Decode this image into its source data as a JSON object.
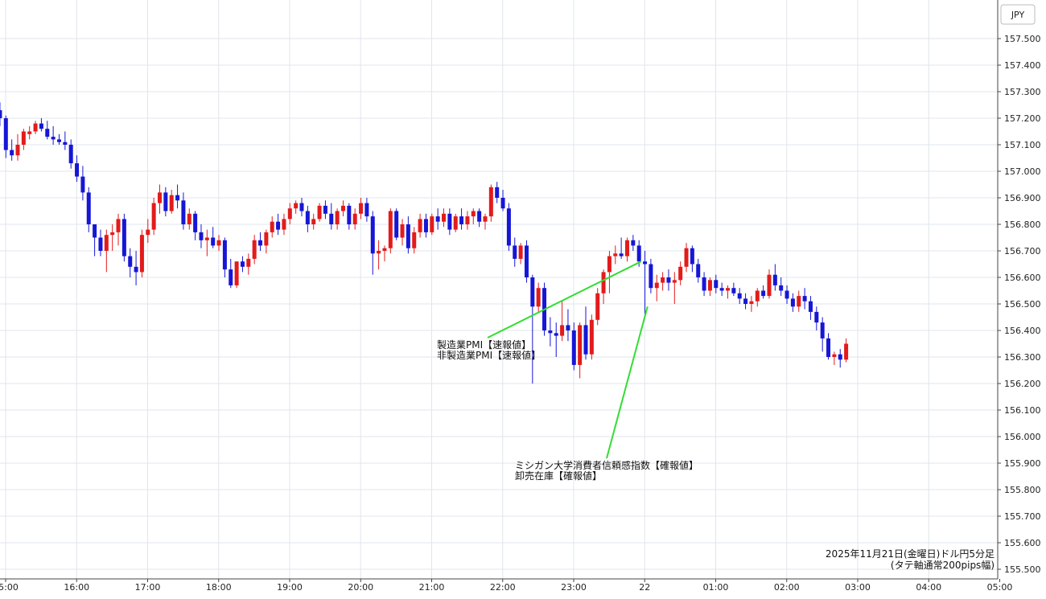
{
  "chart_data": {
    "type": "candlestick",
    "currency": "JPY",
    "caption": [
      "2025年11月21日(金曜日)ドル円5分足",
      "(タテ軸通常200pips幅)"
    ],
    "ylim": [
      155.5,
      157.6
    ],
    "y_ticks": [
      "155.500",
      "155.600",
      "155.700",
      "155.800",
      "155.900",
      "156.000",
      "156.100",
      "156.200",
      "156.300",
      "156.400",
      "156.500",
      "156.600",
      "156.700",
      "156.800",
      "156.900",
      "157.000",
      "157.100",
      "157.200",
      "157.300",
      "157.400",
      "157.500"
    ],
    "x_ticks": [
      "15:00",
      "16:00",
      "17:00",
      "18:00",
      "19:00",
      "20:00",
      "21:00",
      "22:00",
      "23:00",
      "22",
      "01:00",
      "02:00",
      "03:00",
      "04:00",
      "05:00"
    ],
    "x_tick_hours": [
      15,
      16,
      17,
      18,
      19,
      20,
      21,
      22,
      23,
      24,
      25,
      26,
      27,
      28,
      29
    ],
    "annotations": [
      {
        "lines": [
          "製造業PMI【速報値】",
          "非製造業PMI【速報値】"
        ],
        "time": 23.95,
        "price": 156.66
      },
      {
        "lines": [
          "ミシガン大学消費者信頼感指数【確報値】",
          "卸売在庫【確報値】"
        ],
        "time": 24.04,
        "price": 156.49
      }
    ],
    "colors": {
      "up": "#e31b1b",
      "down": "#1616d6",
      "annotation_line": "#33dd33",
      "grid": "#dfe6ec"
    },
    "start_hour": 14.92,
    "interval_minutes": 5,
    "candles": [
      [
        157.23,
        157.26,
        157.17,
        157.2
      ],
      [
        157.2,
        157.21,
        157.05,
        157.08
      ],
      [
        157.08,
        157.12,
        157.04,
        157.06
      ],
      [
        157.06,
        157.14,
        157.04,
        157.1
      ],
      [
        157.1,
        157.16,
        157.08,
        157.15
      ],
      [
        157.14,
        157.17,
        157.12,
        157.15
      ],
      [
        157.15,
        157.19,
        157.14,
        157.18
      ],
      [
        157.18,
        157.2,
        157.15,
        157.16
      ],
      [
        157.16,
        157.19,
        157.12,
        157.13
      ],
      [
        157.13,
        157.17,
        157.1,
        157.12
      ],
      [
        157.12,
        157.14,
        157.1,
        157.11
      ],
      [
        157.11,
        157.15,
        157.08,
        157.1
      ],
      [
        157.1,
        157.12,
        157.01,
        157.03
      ],
      [
        157.03,
        157.06,
        156.96,
        156.98
      ],
      [
        156.98,
        157.02,
        156.89,
        156.92
      ],
      [
        156.92,
        156.94,
        156.77,
        156.8
      ],
      [
        156.8,
        156.8,
        156.68,
        156.75
      ],
      [
        156.75,
        156.78,
        156.68,
        156.7
      ],
      [
        156.7,
        156.78,
        156.62,
        156.76
      ],
      [
        156.76,
        156.8,
        156.7,
        156.77
      ],
      [
        156.77,
        156.84,
        156.72,
        156.82
      ],
      [
        156.82,
        156.84,
        156.66,
        156.68
      ],
      [
        156.68,
        156.71,
        156.6,
        156.64
      ],
      [
        156.64,
        156.7,
        156.57,
        156.62
      ],
      [
        156.62,
        156.78,
        156.6,
        156.76
      ],
      [
        156.76,
        156.82,
        156.73,
        156.78
      ],
      [
        156.78,
        156.9,
        156.76,
        156.88
      ],
      [
        156.88,
        156.95,
        156.84,
        156.92
      ],
      [
        156.92,
        156.94,
        156.83,
        156.85
      ],
      [
        156.85,
        156.93,
        156.84,
        156.91
      ],
      [
        156.91,
        156.95,
        156.86,
        156.89
      ],
      [
        156.89,
        156.92,
        156.78,
        156.8
      ],
      [
        156.8,
        156.86,
        156.78,
        156.84
      ],
      [
        156.84,
        156.85,
        156.74,
        156.77
      ],
      [
        156.77,
        156.8,
        156.71,
        156.74
      ],
      [
        156.74,
        156.78,
        156.68,
        156.75
      ],
      [
        156.75,
        156.79,
        156.71,
        156.72
      ],
      [
        156.72,
        156.76,
        156.7,
        156.74
      ],
      [
        156.74,
        156.75,
        156.6,
        156.63
      ],
      [
        156.63,
        156.67,
        156.56,
        156.57
      ],
      [
        156.57,
        156.66,
        156.56,
        156.66
      ],
      [
        156.66,
        156.68,
        156.62,
        156.64
      ],
      [
        156.64,
        156.69,
        156.61,
        156.67
      ],
      [
        156.67,
        156.76,
        156.65,
        156.74
      ],
      [
        156.74,
        156.77,
        156.7,
        156.72
      ],
      [
        156.72,
        156.78,
        156.69,
        156.77
      ],
      [
        156.77,
        156.83,
        156.75,
        156.81
      ],
      [
        156.81,
        156.84,
        156.76,
        156.78
      ],
      [
        156.78,
        156.84,
        156.76,
        156.82
      ],
      [
        156.82,
        156.88,
        156.8,
        156.86
      ],
      [
        156.86,
        156.89,
        156.84,
        156.88
      ],
      [
        156.88,
        156.9,
        156.83,
        156.85
      ],
      [
        156.85,
        156.87,
        156.77,
        156.8
      ],
      [
        156.8,
        156.84,
        156.78,
        156.82
      ],
      [
        156.82,
        156.88,
        156.81,
        156.87
      ],
      [
        156.87,
        156.89,
        156.82,
        156.84
      ],
      [
        156.84,
        156.88,
        156.78,
        156.8
      ],
      [
        156.8,
        156.86,
        156.78,
        156.85
      ],
      [
        156.85,
        156.89,
        156.83,
        156.87
      ],
      [
        156.87,
        156.88,
        156.78,
        156.8
      ],
      [
        156.8,
        156.86,
        156.78,
        156.84
      ],
      [
        156.84,
        156.9,
        156.82,
        156.88
      ],
      [
        156.88,
        156.9,
        156.81,
        156.83
      ],
      [
        156.83,
        156.85,
        156.61,
        156.69
      ],
      [
        156.69,
        156.74,
        156.63,
        156.7
      ],
      [
        156.7,
        156.72,
        156.66,
        156.71
      ],
      [
        156.71,
        156.86,
        156.69,
        156.85
      ],
      [
        156.85,
        156.86,
        156.74,
        156.75
      ],
      [
        156.75,
        156.82,
        156.72,
        156.8
      ],
      [
        156.8,
        156.83,
        156.69,
        156.71
      ],
      [
        156.71,
        156.79,
        156.69,
        156.77
      ],
      [
        156.77,
        156.84,
        156.75,
        156.82
      ],
      [
        156.82,
        156.84,
        156.75,
        156.77
      ],
      [
        156.77,
        156.84,
        156.76,
        156.83
      ],
      [
        156.83,
        156.86,
        156.78,
        156.81
      ],
      [
        156.81,
        156.86,
        156.79,
        156.84
      ],
      [
        156.84,
        156.86,
        156.76,
        156.78
      ],
      [
        156.78,
        156.84,
        156.77,
        156.83
      ],
      [
        156.83,
        156.86,
        156.78,
        156.8
      ],
      [
        156.8,
        156.85,
        156.78,
        156.83
      ],
      [
        156.83,
        156.86,
        156.8,
        156.85
      ],
      [
        156.85,
        156.86,
        156.79,
        156.81
      ],
      [
        156.81,
        156.84,
        156.78,
        156.83
      ],
      [
        156.83,
        156.95,
        156.81,
        156.94
      ],
      [
        156.94,
        156.96,
        156.88,
        156.9
      ],
      [
        156.9,
        156.93,
        156.85,
        156.86
      ],
      [
        156.86,
        156.88,
        156.7,
        156.72
      ],
      [
        156.72,
        156.75,
        156.64,
        156.67
      ],
      [
        156.67,
        156.73,
        156.65,
        156.72
      ],
      [
        156.72,
        156.74,
        156.58,
        156.6
      ],
      [
        156.6,
        156.61,
        156.2,
        156.49
      ],
      [
        156.49,
        156.58,
        156.47,
        156.56
      ],
      [
        156.56,
        156.58,
        156.38,
        156.4
      ],
      [
        156.4,
        156.45,
        156.34,
        156.39
      ],
      [
        156.39,
        156.43,
        156.3,
        156.38
      ],
      [
        156.38,
        156.51,
        156.36,
        156.42
      ],
      [
        156.42,
        156.48,
        156.36,
        156.4
      ],
      [
        156.4,
        156.43,
        156.25,
        156.27
      ],
      [
        156.27,
        156.43,
        156.22,
        156.42
      ],
      [
        156.42,
        156.49,
        156.29,
        156.31
      ],
      [
        156.31,
        156.46,
        156.29,
        156.44
      ],
      [
        156.44,
        156.56,
        156.42,
        156.54
      ],
      [
        156.54,
        156.63,
        156.5,
        156.62
      ],
      [
        156.62,
        156.7,
        156.54,
        156.68
      ],
      [
        156.68,
        156.72,
        156.65,
        156.69
      ],
      [
        156.69,
        156.75,
        156.67,
        156.68
      ],
      [
        156.68,
        156.75,
        156.66,
        156.74
      ],
      [
        156.74,
        156.76,
        156.7,
        156.72
      ],
      [
        156.72,
        156.74,
        156.64,
        156.66
      ],
      [
        156.66,
        156.7,
        156.46,
        156.65
      ],
      [
        156.65,
        156.67,
        156.54,
        156.56
      ],
      [
        156.56,
        156.61,
        156.51,
        156.58
      ],
      [
        156.58,
        156.62,
        156.55,
        156.6
      ],
      [
        156.6,
        156.63,
        156.55,
        156.58
      ],
      [
        156.58,
        156.62,
        156.5,
        156.59
      ],
      [
        156.59,
        156.66,
        156.57,
        156.64
      ],
      [
        156.64,
        156.73,
        156.62,
        156.71
      ],
      [
        156.71,
        156.72,
        156.62,
        156.65
      ],
      [
        156.65,
        156.67,
        156.58,
        156.6
      ],
      [
        156.6,
        156.62,
        156.53,
        156.55
      ],
      [
        156.55,
        156.6,
        156.53,
        156.59
      ],
      [
        156.59,
        156.61,
        156.54,
        156.56
      ],
      [
        156.56,
        156.58,
        156.53,
        156.55
      ],
      [
        156.55,
        156.57,
        156.52,
        156.56
      ],
      [
        156.56,
        156.58,
        156.53,
        156.54
      ],
      [
        156.54,
        156.56,
        156.5,
        156.52
      ],
      [
        156.52,
        156.54,
        156.48,
        156.5
      ],
      [
        156.5,
        156.53,
        156.47,
        156.51
      ],
      [
        156.51,
        156.56,
        156.49,
        156.55
      ],
      [
        156.55,
        156.57,
        156.52,
        156.53
      ],
      [
        156.53,
        156.63,
        156.52,
        156.61
      ],
      [
        156.61,
        156.65,
        156.55,
        156.57
      ],
      [
        156.57,
        156.6,
        156.53,
        156.55
      ],
      [
        156.55,
        156.57,
        156.5,
        156.52
      ],
      [
        156.52,
        156.54,
        156.47,
        156.49
      ],
      [
        156.49,
        156.55,
        156.47,
        156.53
      ],
      [
        156.53,
        156.56,
        156.48,
        156.51
      ],
      [
        156.51,
        156.53,
        156.44,
        156.47
      ],
      [
        156.47,
        156.49,
        156.4,
        156.43
      ],
      [
        156.43,
        156.45,
        156.32,
        156.37
      ],
      [
        156.37,
        156.39,
        156.29,
        156.3
      ],
      [
        156.3,
        156.32,
        156.27,
        156.31
      ],
      [
        156.31,
        156.33,
        156.26,
        156.29
      ],
      [
        156.29,
        156.37,
        156.28,
        156.35
      ]
    ]
  }
}
